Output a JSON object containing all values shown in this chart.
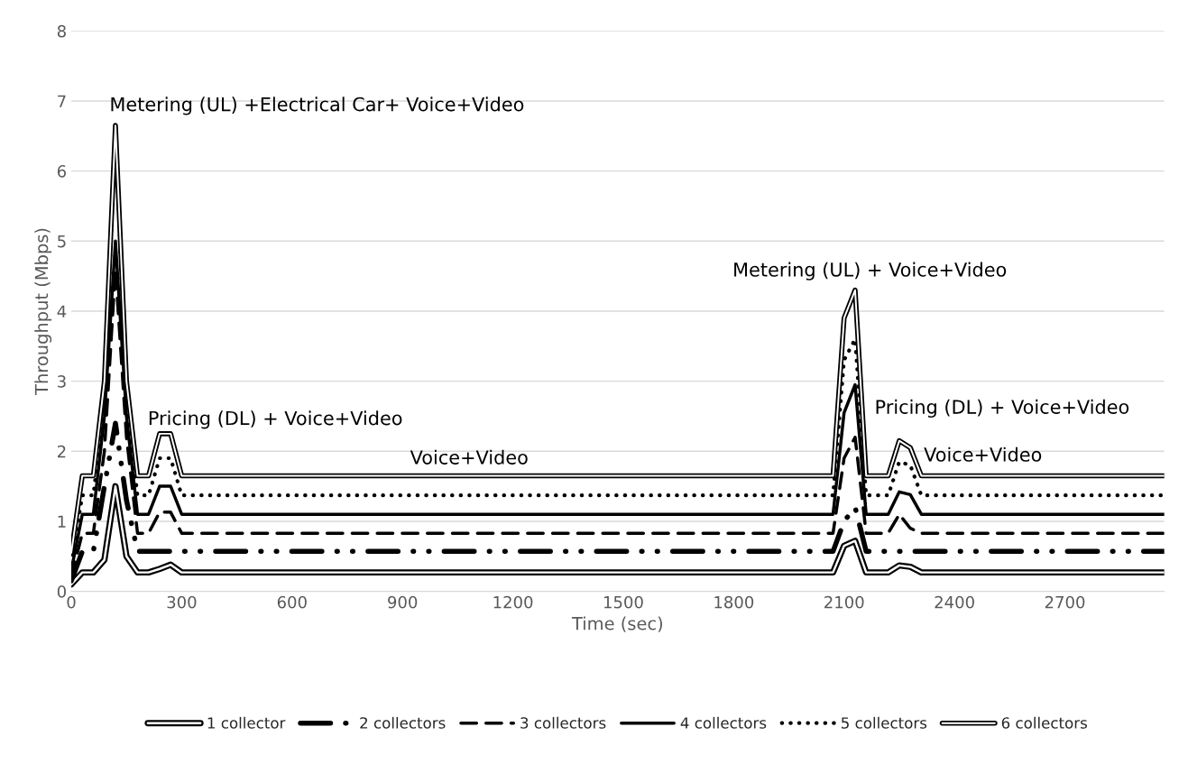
{
  "chart_data": {
    "type": "line",
    "xlabel": "Time (sec)",
    "ylabel": "Throughput (Mbps)",
    "x": [
      0,
      30,
      60,
      90,
      120,
      150,
      180,
      210,
      240,
      270,
      300,
      2070,
      2100,
      2130,
      2160,
      2220,
      2250,
      2280,
      2310,
      2970
    ],
    "xlim": [
      0,
      2970
    ],
    "xticks": [
      0,
      300,
      600,
      900,
      1200,
      1500,
      1800,
      2100,
      2400,
      2700
    ],
    "ylim": [
      0,
      8
    ],
    "yticks": [
      0,
      1,
      2,
      3,
      4,
      5,
      6,
      7,
      8
    ],
    "grid": "y",
    "legend": "bottom",
    "series": [
      {
        "name": "1 collector",
        "color": "#000000",
        "line_style": "solid",
        "values": [
          0.1,
          0.27,
          0.27,
          0.45,
          1.5,
          0.5,
          0.27,
          0.27,
          0.32,
          0.38,
          0.27,
          0.27,
          0.65,
          0.72,
          0.27,
          0.27,
          0.37,
          0.35,
          0.27,
          0.27
        ]
      },
      {
        "name": "2 collectors",
        "color": "#000000",
        "line_style": "dashdot",
        "values": [
          0.15,
          0.57,
          0.57,
          1.5,
          2.4,
          1.3,
          0.57,
          0.57,
          0.57,
          0.57,
          0.57,
          0.57,
          1.0,
          1.2,
          0.57,
          0.57,
          0.57,
          0.57,
          0.57,
          0.57
        ]
      },
      {
        "name": "3 collectors",
        "color": "#000000",
        "line_style": "dashed",
        "values": [
          0.2,
          0.83,
          0.83,
          2.0,
          4.6,
          2.2,
          0.83,
          0.83,
          1.13,
          1.13,
          0.83,
          0.83,
          1.9,
          2.2,
          0.83,
          0.83,
          1.1,
          0.9,
          0.83,
          0.83
        ]
      },
      {
        "name": "4 collectors",
        "color": "#000000",
        "line_style": "solid",
        "values": [
          0.3,
          1.1,
          1.1,
          2.5,
          5.0,
          2.5,
          1.1,
          1.1,
          1.5,
          1.5,
          1.1,
          1.1,
          2.55,
          2.95,
          1.1,
          1.1,
          1.42,
          1.38,
          1.1,
          1.1
        ]
      },
      {
        "name": "5 collectors",
        "color": "#000000",
        "line_style": "dotted",
        "values": [
          0.4,
          1.37,
          1.37,
          2.7,
          6.6,
          2.7,
          1.37,
          1.37,
          1.9,
          1.9,
          1.37,
          1.37,
          3.3,
          3.6,
          1.37,
          1.37,
          1.85,
          1.8,
          1.37,
          1.37
        ]
      },
      {
        "name": "6 collectors",
        "color": "#000000",
        "line_style": "solid",
        "values": [
          0.55,
          1.65,
          1.65,
          3.0,
          6.65,
          3.0,
          1.65,
          1.65,
          2.25,
          2.25,
          1.65,
          1.65,
          3.9,
          4.3,
          1.65,
          1.65,
          2.15,
          2.05,
          1.65,
          1.65
        ]
      }
    ],
    "annotations": [
      "Metering (UL) +Electrical Car+ Voice+Video",
      "Pricing (DL) + Voice+Video",
      "Voice+Video",
      "Metering (UL) + Voice+Video",
      "Pricing (DL) + Voice+Video",
      "Voice+Video"
    ]
  }
}
